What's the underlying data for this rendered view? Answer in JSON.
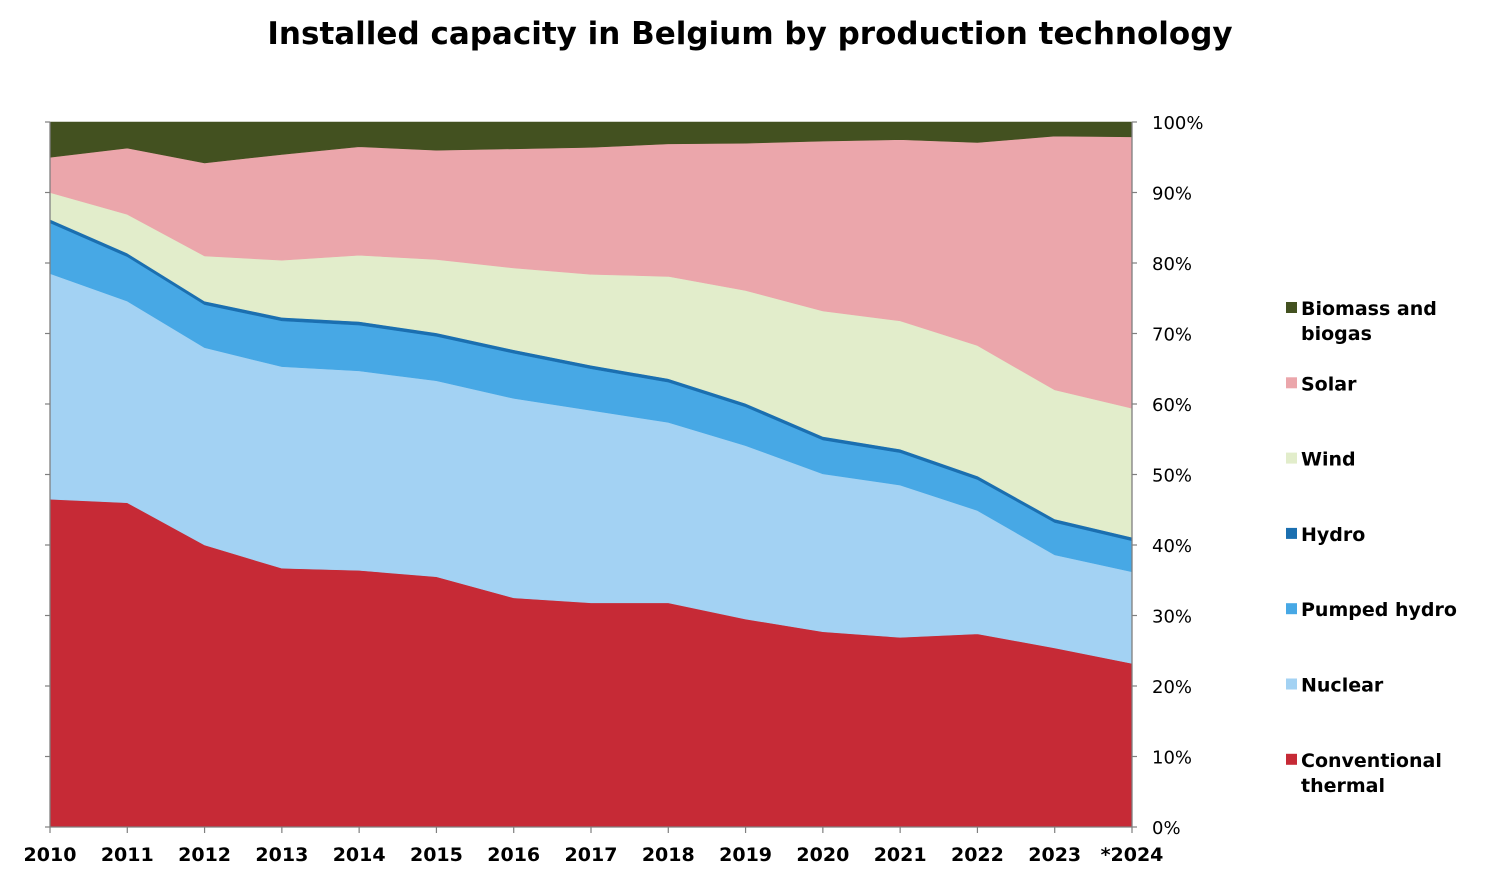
{
  "chart_data": {
    "type": "area",
    "stacked": true,
    "percent": true,
    "title": "Installed capacity in Belgium by production technology",
    "xlabel": "",
    "ylabel": "",
    "categories": [
      "2010",
      "2011",
      "2012",
      "2013",
      "2014",
      "2015",
      "2016",
      "2017",
      "2018",
      "2019",
      "2020",
      "2021",
      "2022",
      "2023",
      "*2024"
    ],
    "ylim": [
      0,
      100
    ],
    "yticks": [
      "0%",
      "10%",
      "20%",
      "30%",
      "40%",
      "50%",
      "60%",
      "70%",
      "80%",
      "90%",
      "100%"
    ],
    "y_axis_side": "right",
    "legend_position": "right",
    "grid": false,
    "series": [
      {
        "name": "Conventional thermal",
        "color": "#c62a36",
        "values": [
          46.5,
          46,
          40,
          36.7,
          36.4,
          35.5,
          32.5,
          31.8,
          31.8,
          29.5,
          27.7,
          26.9,
          27.4,
          25.4,
          23.2
        ]
      },
      {
        "name": "Nuclear",
        "color": "#a3d2f3",
        "values": [
          32.0,
          28.6,
          28.0,
          28.6,
          28.3,
          27.8,
          28.3,
          27.3,
          25.6,
          24.6,
          22.4,
          21.6,
          17.5,
          13.2,
          13.0
        ]
      },
      {
        "name": "Pumped hydro",
        "color": "#47a8e5",
        "values": [
          7.2,
          6.3,
          6.1,
          6.5,
          6.5,
          6.3,
          6.4,
          5.9,
          5.7,
          5.5,
          4.8,
          4.6,
          4.4,
          4.6,
          4.4
        ]
      },
      {
        "name": "Hydro",
        "color": "#1b6fb0",
        "values": [
          0.5,
          0.5,
          0.5,
          0.5,
          0.5,
          0.5,
          0.5,
          0.5,
          0.5,
          0.5,
          0.5,
          0.5,
          0.5,
          0.5,
          0.5
        ]
      },
      {
        "name": "Wind",
        "color": "#e2edcb",
        "values": [
          3.8,
          5.5,
          6.4,
          8.1,
          9.4,
          10.4,
          11.6,
          12.9,
          14.5,
          16.0,
          17.8,
          18.2,
          18.5,
          18.3,
          18.3
        ]
      },
      {
        "name": "Solar",
        "color": "#eba6ab",
        "values": [
          5.0,
          9.4,
          13.2,
          15.0,
          15.4,
          15.5,
          16.9,
          18.0,
          18.8,
          20.9,
          24.1,
          25.7,
          28.8,
          36.0,
          38.5
        ]
      },
      {
        "name": "Biomass and biogas",
        "color": "#435120",
        "values": [
          5.0,
          3.7,
          5.8,
          4.6,
          3.5,
          4.0,
          3.8,
          3.6,
          3.1,
          3.0,
          2.7,
          2.5,
          2.9,
          2.0,
          2.1
        ]
      }
    ],
    "legend": [
      {
        "lines": [
          "Biomass and",
          "biogas"
        ],
        "color": "#435120"
      },
      {
        "lines": [
          "Solar"
        ],
        "color": "#eba6ab"
      },
      {
        "lines": [
          "Wind"
        ],
        "color": "#e2edcb"
      },
      {
        "lines": [
          "Hydro"
        ],
        "color": "#1b6fb0"
      },
      {
        "lines": [
          "Pumped hydro"
        ],
        "color": "#47a8e5"
      },
      {
        "lines": [
          "Nuclear"
        ],
        "color": "#a3d2f3"
      },
      {
        "lines": [
          "Conventional",
          "thermal"
        ],
        "color": "#c62a36"
      }
    ]
  }
}
